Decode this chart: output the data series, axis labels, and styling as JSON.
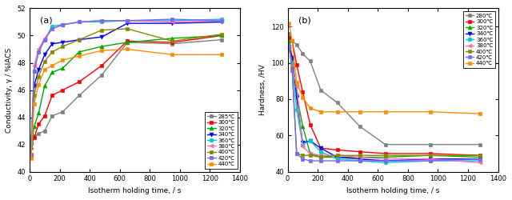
{
  "conductivity": {
    "xlabel": "Isotherm holding time, / s",
    "ylabel": "Conductivity, γ / %IACS",
    "label": "(a)",
    "xlim": [
      0,
      1400
    ],
    "ylim": [
      40,
      52
    ],
    "yticks": [
      40,
      42,
      44,
      46,
      48,
      50,
      52
    ],
    "xticks": [
      0,
      200,
      400,
      600,
      800,
      1000,
      1200,
      1400
    ],
    "series": [
      {
        "label": "285℃",
        "color": "#808080",
        "marker": "s",
        "x": [
          10,
          30,
          60,
          100,
          150,
          220,
          330,
          480,
          650,
          950,
          1280
        ],
        "y": [
          42.4,
          42.6,
          42.8,
          43.0,
          44.1,
          44.4,
          45.6,
          47.1,
          49.5,
          49.4,
          49.7
        ]
      },
      {
        "label": "300℃",
        "color": "#ff0000",
        "marker": "s",
        "x": [
          10,
          30,
          60,
          100,
          150,
          220,
          330,
          480,
          650,
          950,
          1280
        ],
        "y": [
          42.1,
          42.5,
          43.5,
          44.1,
          45.6,
          46.0,
          46.6,
          47.8,
          49.6,
          49.5,
          50.0
        ]
      },
      {
        "label": "320℃",
        "color": "#00aa00",
        "marker": "^",
        "x": [
          10,
          30,
          60,
          100,
          150,
          220,
          330,
          480,
          650,
          950,
          1280
        ],
        "y": [
          41.8,
          43.3,
          44.3,
          46.3,
          47.3,
          47.6,
          48.8,
          49.2,
          49.5,
          49.8,
          50.0
        ]
      },
      {
        "label": "340℃",
        "color": "#0000ff",
        "marker": "v",
        "x": [
          10,
          30,
          60,
          100,
          150,
          220,
          330,
          480,
          650,
          950,
          1280
        ],
        "y": [
          42.0,
          46.3,
          47.5,
          48.6,
          49.4,
          49.5,
          49.7,
          49.9,
          50.9,
          50.9,
          51.0
        ]
      },
      {
        "label": "360℃",
        "color": "#00cccc",
        "marker": "o",
        "x": [
          10,
          30,
          60,
          100,
          150,
          220,
          330,
          480,
          650,
          950,
          1280
        ],
        "y": [
          42.1,
          47.4,
          48.8,
          49.7,
          50.7,
          50.8,
          51.0,
          51.0,
          51.1,
          51.1,
          51.2
        ]
      },
      {
        "label": "380℃",
        "color": "#ff69b4",
        "marker": "<",
        "x": [
          10,
          30,
          60,
          100,
          150,
          220,
          330,
          480,
          650,
          950,
          1280
        ],
        "y": [
          41.2,
          47.8,
          49.0,
          49.8,
          50.5,
          50.8,
          51.0,
          51.1,
          51.1,
          51.0,
          51.1
        ]
      },
      {
        "label": "400℃",
        "color": "#888800",
        "marker": "s",
        "x": [
          10,
          30,
          60,
          100,
          150,
          220,
          330,
          480,
          650,
          950,
          1280
        ],
        "y": [
          41.1,
          45.6,
          47.0,
          48.1,
          48.8,
          49.2,
          49.7,
          50.4,
          50.5,
          49.6,
          50.1
        ]
      },
      {
        "label": "420℃",
        "color": "#7b68ee",
        "marker": "s",
        "x": [
          10,
          30,
          60,
          100,
          150,
          220,
          330,
          480,
          650,
          950,
          1280
        ],
        "y": [
          41.3,
          47.4,
          48.8,
          49.7,
          50.5,
          50.8,
          51.0,
          51.1,
          51.1,
          51.2,
          51.1
        ]
      },
      {
        "label": "440℃",
        "color": "#ff8c00",
        "marker": "s",
        "x": [
          10,
          30,
          60,
          100,
          150,
          220,
          330,
          480,
          650,
          950,
          1280
        ],
        "y": [
          41.0,
          45.0,
          46.4,
          47.5,
          47.8,
          48.2,
          48.5,
          48.9,
          49.0,
          48.6,
          48.6
        ]
      }
    ]
  },
  "hardness": {
    "xlabel": "Isotherm holding time, / s",
    "ylabel": "Hardness, /HV",
    "label": "(b)",
    "xlim": [
      0,
      1400
    ],
    "ylim": [
      40,
      130
    ],
    "yticks": [
      40,
      60,
      80,
      100,
      120
    ],
    "xticks": [
      0,
      200,
      400,
      600,
      800,
      1000,
      1200,
      1400
    ],
    "series": [
      {
        "label": "280℃",
        "color": "#808080",
        "marker": "s",
        "x": [
          10,
          30,
          60,
          100,
          150,
          220,
          330,
          480,
          650,
          950,
          1280
        ],
        "y": [
          116,
          112,
          110,
          105,
          101,
          85,
          78,
          65,
          55,
          55,
          55
        ]
      },
      {
        "label": "300℃",
        "color": "#ff0000",
        "marker": "s",
        "x": [
          10,
          30,
          60,
          100,
          150,
          220,
          330,
          480,
          650,
          950,
          1280
        ],
        "y": [
          114,
          112,
          99,
          84,
          66,
          53,
          52,
          51,
          50,
          50,
          49
        ]
      },
      {
        "label": "320℃",
        "color": "#00aa00",
        "marker": "^",
        "x": [
          10,
          30,
          60,
          100,
          150,
          220,
          330,
          480,
          650,
          950,
          1280
        ],
        "y": [
          112,
          103,
          83,
          65,
          50,
          48,
          48,
          48,
          48,
          49,
          48
        ]
      },
      {
        "label": "340℃",
        "color": "#0000ff",
        "marker": "v",
        "x": [
          10,
          30,
          60,
          100,
          150,
          220,
          330,
          480,
          650,
          950,
          1280
        ],
        "y": [
          109,
          103,
          81,
          56,
          57,
          53,
          48,
          47,
          46,
          47,
          47
        ]
      },
      {
        "label": "360℃",
        "color": "#00cccc",
        "marker": "o",
        "x": [
          10,
          30,
          60,
          100,
          150,
          220,
          330,
          480,
          650,
          950,
          1280
        ],
        "y": [
          108,
          100,
          74,
          55,
          57,
          51,
          47,
          46,
          45,
          46,
          46
        ]
      },
      {
        "label": "380℃",
        "color": "#ff69b4",
        "marker": "<",
        "x": [
          10,
          30,
          60,
          100,
          150,
          220,
          330,
          480,
          650,
          950,
          1280
        ],
        "y": [
          109,
          98,
          87,
          54,
          50,
          49,
          49,
          48,
          47,
          47,
          45
        ]
      },
      {
        "label": "400℃",
        "color": "#888800",
        "marker": "s",
        "x": [
          10,
          30,
          60,
          100,
          150,
          220,
          330,
          480,
          650,
          950,
          1280
        ],
        "y": [
          109,
          97,
          50,
          49,
          49,
          48,
          49,
          49,
          49,
          49,
          49
        ]
      },
      {
        "label": "420℃",
        "color": "#7b68ee",
        "marker": "s",
        "x": [
          10,
          30,
          60,
          100,
          150,
          220,
          330,
          480,
          650,
          950,
          1280
        ],
        "y": [
          109,
          96,
          50,
          47,
          46,
          46,
          46,
          46,
          46,
          46,
          47
        ]
      },
      {
        "label": "440℃",
        "color": "#ff8c00",
        "marker": "s",
        "x": [
          10,
          30,
          60,
          100,
          150,
          220,
          330,
          480,
          650,
          950,
          1280
        ],
        "y": [
          122,
          112,
          89,
          81,
          75,
          73,
          73,
          73,
          73,
          73,
          72
        ]
      }
    ]
  }
}
